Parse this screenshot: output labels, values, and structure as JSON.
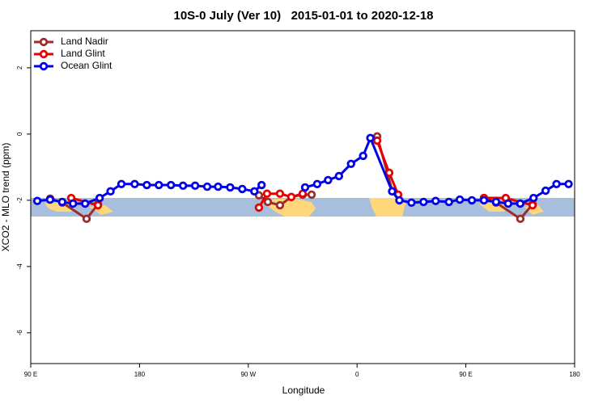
{
  "chart_data": {
    "type": "line",
    "title": "10S-0 July (Ver 10)   2015-01-01 to 2020-12-18",
    "x_label": "Longitude",
    "y_label": "XCO2 - MLO trend (ppm)",
    "xlim": [
      90,
      540
    ],
    "xticks": [
      {
        "value": 90,
        "label": "90 E"
      },
      180,
      {
        "value": 270,
        "label": "90 W"
      },
      {
        "value": 360,
        "label": "0"
      },
      {
        "value": 450,
        "label": "90 E"
      },
      {
        "value": 540,
        "label": "180"
      }
    ],
    "ylim": [
      -6.93,
      3.12
    ],
    "yticks": [
      -6,
      -4,
      -2,
      0,
      2
    ],
    "legend": "top-left",
    "series": [
      {
        "name": "Land Nadir",
        "color": "#9b2d2d",
        "x": [
          106.1,
          116.1,
          136.2,
          145.6,
          null,
          278.8,
          286.2,
          296.2,
          305.6,
          315,
          322.4,
          null,
          376.6,
          389.3,
          null,
          465,
          475,
          495.1,
          505.2
        ],
        "values": [
          -1.95,
          -2.07,
          -2.56,
          -2.12,
          null,
          -1.85,
          -2.05,
          -2.15,
          -1.9,
          -1.83,
          -1.83,
          null,
          -0.07,
          -1.73,
          null,
          -1.93,
          -2.07,
          -2.56,
          -2.12
        ]
      },
      {
        "name": "Land Glint",
        "color": "#e60000",
        "x": [
          123.5,
          145.6,
          null,
          278.8,
          285.5,
          296.2,
          305.6,
          315,
          null,
          376.6,
          386.6,
          394,
          null,
          465,
          483,
          505.2
        ],
        "values": [
          -1.93,
          -2.15,
          null,
          -2.22,
          -1.8,
          -1.8,
          -1.9,
          -1.8,
          null,
          -0.2,
          -1.17,
          -1.83,
          null,
          -1.93,
          -1.93,
          -2.15
        ]
      },
      {
        "name": "Ocean Glint",
        "color": "#0000e6",
        "x": [
          95.4,
          106,
          116,
          125,
          135,
          147,
          156,
          165,
          176,
          186,
          196,
          206,
          216,
          226,
          236,
          245,
          255,
          265,
          275,
          281,
          null,
          317,
          327,
          336,
          345,
          355,
          365,
          371,
          389,
          395,
          405,
          415,
          425,
          436,
          445,
          455,
          465,
          475,
          485,
          495,
          506,
          516,
          525,
          535
        ],
        "values": [
          -2.02,
          -1.98,
          -2.05,
          -2.1,
          -2.1,
          -1.93,
          -1.73,
          -1.51,
          -1.51,
          -1.54,
          -1.54,
          -1.54,
          -1.56,
          -1.56,
          -1.59,
          -1.59,
          -1.61,
          -1.66,
          -1.73,
          -1.54,
          null,
          -1.61,
          -1.51,
          -1.39,
          -1.27,
          -0.9,
          -0.66,
          -0.12,
          -1.73,
          -2.0,
          -2.07,
          -2.05,
          -2.02,
          -2.05,
          -1.98,
          -2.0,
          -2.0,
          -2.05,
          -2.1,
          -2.1,
          -1.93,
          -1.71,
          -1.51,
          -1.51
        ]
      }
    ]
  }
}
